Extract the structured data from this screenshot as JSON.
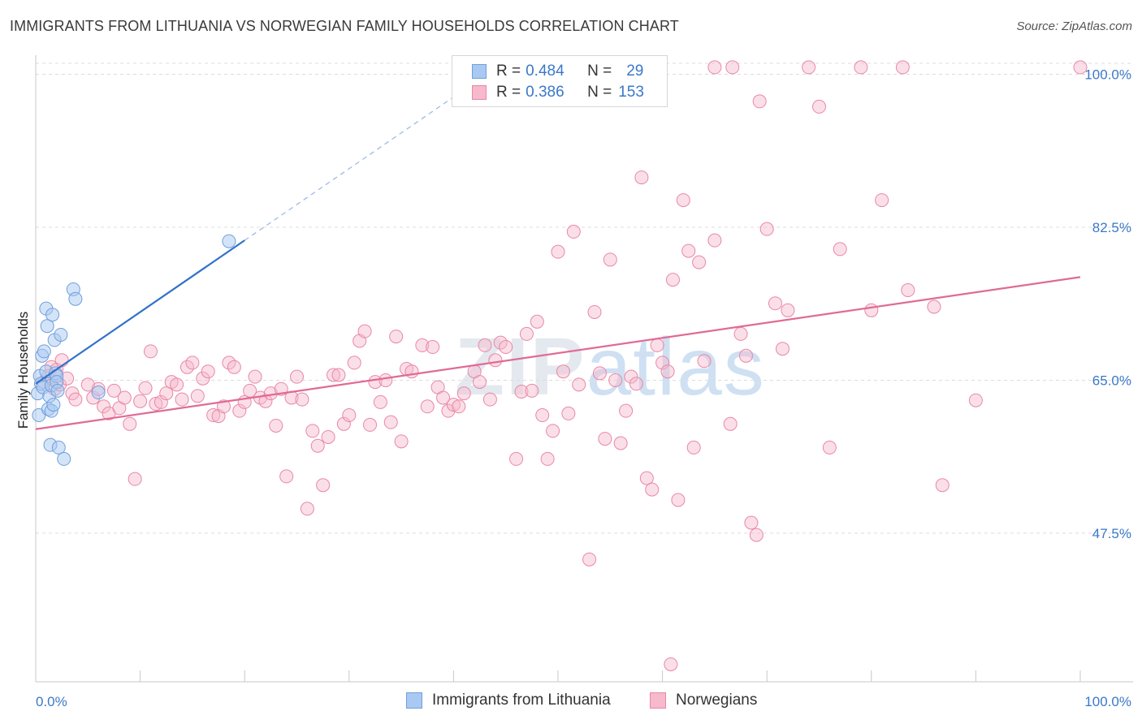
{
  "header": {
    "title": "IMMIGRANTS FROM LITHUANIA VS NORWEGIAN FAMILY HOUSEHOLDS CORRELATION CHART",
    "source": "Source: ZipAtlas.com"
  },
  "watermark": {
    "zip": "ZIP",
    "atlas": "atlas"
  },
  "legend": {
    "rows": [
      {
        "r_label": "R =",
        "r_value": "0.484",
        "n_label": "N =",
        "n_value": "29",
        "color": "#a9c9f2"
      },
      {
        "r_label": "R =",
        "r_value": "0.386",
        "n_label": "N =",
        "n_value": "153",
        "color": "#f7b9cc"
      }
    ]
  },
  "bottom_legend": {
    "items": [
      {
        "label": "Immigrants from Lithuania",
        "color": "#a9c9f2"
      },
      {
        "label": "Norwegians",
        "color": "#f7b9cc"
      }
    ]
  },
  "colors": {
    "blue_fill": "#a9c9f2",
    "blue_stroke": "#6f9fdc",
    "blue_line": "#2f72c8",
    "pink_fill": "#f7b9cc",
    "pink_stroke": "#e888a6",
    "pink_line": "#e06a95",
    "axis_text": "#3b78c8",
    "grid": "#dcdcdc"
  },
  "chart_data": {
    "type": "scatter",
    "title": "IMMIGRANTS FROM LITHUANIA VS NORWEGIAN FAMILY HOUSEHOLDS CORRELATION CHART",
    "xlabel": "",
    "ylabel": "Family Households",
    "xlim": [
      0,
      100
    ],
    "ylim": [
      30.5,
      102
    ],
    "x_tick_labels": [
      "0.0%",
      "100.0%"
    ],
    "y_ticks": [
      47.5,
      65.0,
      82.5,
      100.0
    ],
    "y_tick_labels": [
      "47.5%",
      "65.0%",
      "82.5%",
      "100.0%"
    ],
    "grid": true,
    "legend_position": "top-center",
    "series": [
      {
        "name": "Immigrants from Lithuania",
        "R": 0.484,
        "N": 29,
        "trend": {
          "x": [
            0,
            20
          ],
          "y": [
            64.6,
            81.0
          ]
        },
        "trend_dashed_extension": {
          "x": [
            20,
            45
          ],
          "y": [
            81.0,
            101.5
          ]
        },
        "points": [
          [
            0.2,
            63.5
          ],
          [
            0.3,
            61.0
          ],
          [
            0.4,
            65.5
          ],
          [
            0.5,
            64.6
          ],
          [
            0.6,
            67.8
          ],
          [
            0.7,
            64.2
          ],
          [
            0.8,
            68.3
          ],
          [
            1.0,
            66.0
          ],
          [
            1.0,
            73.2
          ],
          [
            1.1,
            71.2
          ],
          [
            1.2,
            61.7
          ],
          [
            1.3,
            63.2
          ],
          [
            1.4,
            57.6
          ],
          [
            1.5,
            64.4
          ],
          [
            1.5,
            61.5
          ],
          [
            1.6,
            72.5
          ],
          [
            1.7,
            62.2
          ],
          [
            1.8,
            69.6
          ],
          [
            1.9,
            65.8
          ],
          [
            2.0,
            65.5
          ],
          [
            2.0,
            64.8
          ],
          [
            2.1,
            63.8
          ],
          [
            2.2,
            57.3
          ],
          [
            2.4,
            70.2
          ],
          [
            2.7,
            56.0
          ],
          [
            3.6,
            75.4
          ],
          [
            3.8,
            74.3
          ],
          [
            6.0,
            63.6
          ],
          [
            18.5,
            80.9
          ]
        ]
      },
      {
        "name": "Norwegians",
        "R": 0.386,
        "N": 153,
        "trend": {
          "x": [
            0,
            100
          ],
          "y": [
            59.4,
            76.8
          ]
        },
        "points": [
          [
            0.8,
            64.8
          ],
          [
            1.2,
            65.5
          ],
          [
            1.5,
            66.5
          ],
          [
            1.8,
            64.0
          ],
          [
            2.0,
            66.2
          ],
          [
            2.3,
            64.5
          ],
          [
            2.5,
            67.3
          ],
          [
            3.0,
            65.2
          ],
          [
            3.5,
            63.5
          ],
          [
            3.8,
            62.8
          ],
          [
            5.0,
            64.5
          ],
          [
            5.5,
            63.0
          ],
          [
            6.0,
            64.0
          ],
          [
            6.5,
            62.0
          ],
          [
            7.0,
            61.2
          ],
          [
            7.5,
            63.8
          ],
          [
            8.0,
            61.8
          ],
          [
            8.5,
            63.0
          ],
          [
            9.0,
            60.0
          ],
          [
            9.5,
            53.7
          ],
          [
            10.0,
            62.6
          ],
          [
            10.5,
            64.1
          ],
          [
            11.0,
            68.3
          ],
          [
            11.5,
            62.3
          ],
          [
            12.0,
            62.5
          ],
          [
            12.5,
            63.5
          ],
          [
            13.0,
            64.8
          ],
          [
            13.5,
            64.5
          ],
          [
            14.0,
            62.8
          ],
          [
            14.5,
            66.5
          ],
          [
            15.0,
            67.0
          ],
          [
            15.5,
            63.2
          ],
          [
            16.0,
            65.2
          ],
          [
            16.5,
            66.0
          ],
          [
            17.0,
            61.0
          ],
          [
            17.5,
            60.9
          ],
          [
            18.0,
            62.0
          ],
          [
            18.5,
            67.0
          ],
          [
            19.0,
            66.5
          ],
          [
            19.5,
            61.5
          ],
          [
            20.0,
            62.5
          ],
          [
            20.5,
            63.8
          ],
          [
            21.0,
            65.4
          ],
          [
            21.5,
            63.0
          ],
          [
            22.0,
            62.6
          ],
          [
            22.5,
            63.5
          ],
          [
            23.0,
            59.8
          ],
          [
            23.5,
            64.0
          ],
          [
            24.0,
            54.0
          ],
          [
            24.5,
            63.0
          ],
          [
            25.0,
            65.4
          ],
          [
            25.5,
            62.8
          ],
          [
            26.0,
            50.3
          ],
          [
            26.5,
            59.2
          ],
          [
            27.0,
            57.5
          ],
          [
            27.5,
            53.0
          ],
          [
            28.0,
            58.5
          ],
          [
            28.5,
            65.6
          ],
          [
            29.0,
            65.6
          ],
          [
            29.5,
            60.0
          ],
          [
            30.0,
            61.0
          ],
          [
            30.5,
            67.0
          ],
          [
            31.0,
            69.5
          ],
          [
            31.5,
            70.6
          ],
          [
            32.0,
            59.9
          ],
          [
            32.5,
            64.8
          ],
          [
            33.0,
            62.5
          ],
          [
            33.5,
            65.0
          ],
          [
            34.0,
            60.2
          ],
          [
            34.5,
            70.0
          ],
          [
            35.0,
            58.0
          ],
          [
            35.5,
            66.3
          ],
          [
            36.0,
            66.0
          ],
          [
            37.0,
            69.0
          ],
          [
            37.5,
            62.0
          ],
          [
            38.0,
            68.8
          ],
          [
            38.5,
            64.2
          ],
          [
            39.0,
            63.0
          ],
          [
            39.5,
            61.5
          ],
          [
            40.0,
            62.2
          ],
          [
            40.5,
            62.0
          ],
          [
            41.0,
            63.5
          ],
          [
            42.0,
            66.0
          ],
          [
            42.5,
            64.8
          ],
          [
            43.0,
            69.0
          ],
          [
            43.5,
            62.8
          ],
          [
            44.0,
            67.3
          ],
          [
            44.5,
            69.3
          ],
          [
            45.0,
            68.8
          ],
          [
            46.0,
            56.0
          ],
          [
            46.5,
            63.7
          ],
          [
            47.0,
            70.3
          ],
          [
            47.5,
            63.8
          ],
          [
            48.0,
            71.7
          ],
          [
            48.5,
            61.0
          ],
          [
            49.0,
            56.0
          ],
          [
            49.5,
            59.2
          ],
          [
            50.0,
            79.7
          ],
          [
            50.5,
            66.0
          ],
          [
            51.0,
            61.2
          ],
          [
            51.5,
            82.0
          ],
          [
            52.0,
            64.5
          ],
          [
            53.0,
            44.5
          ],
          [
            53.5,
            72.8
          ],
          [
            54.0,
            65.8
          ],
          [
            54.5,
            58.3
          ],
          [
            55.0,
            78.8
          ],
          [
            55.5,
            65.0
          ],
          [
            56.0,
            57.8
          ],
          [
            56.5,
            61.5
          ],
          [
            57.0,
            65.4
          ],
          [
            57.5,
            64.6
          ],
          [
            58.0,
            88.2
          ],
          [
            58.5,
            53.8
          ],
          [
            59.0,
            52.5
          ],
          [
            59.5,
            69.0
          ],
          [
            60.0,
            67.0
          ],
          [
            60.5,
            66.0
          ],
          [
            61.0,
            76.5
          ],
          [
            61.5,
            51.3
          ],
          [
            62.0,
            85.6
          ],
          [
            62.5,
            79.8
          ],
          [
            63.0,
            57.3
          ],
          [
            63.5,
            78.5
          ],
          [
            64.0,
            67.2
          ],
          [
            65.0,
            100.8
          ],
          [
            65.0,
            81.0
          ],
          [
            66.5,
            60.0
          ],
          [
            66.7,
            100.8
          ],
          [
            67.5,
            70.3
          ],
          [
            68.0,
            67.8
          ],
          [
            68.5,
            48.7
          ],
          [
            69.0,
            47.3
          ],
          [
            69.3,
            96.9
          ],
          [
            70.0,
            82.3
          ],
          [
            70.8,
            73.8
          ],
          [
            71.5,
            68.6
          ],
          [
            72.0,
            73.0
          ],
          [
            74.0,
            100.8
          ],
          [
            75.0,
            96.3
          ],
          [
            76.0,
            57.3
          ],
          [
            77.0,
            80.0
          ],
          [
            79.0,
            100.8
          ],
          [
            80.0,
            73.0
          ],
          [
            81.0,
            85.6
          ],
          [
            83.0,
            100.8
          ],
          [
            83.5,
            75.3
          ],
          [
            86.0,
            73.4
          ],
          [
            86.8,
            53.0
          ],
          [
            90.0,
            62.7
          ],
          [
            100.0,
            100.8
          ],
          [
            60.8,
            32.5
          ]
        ]
      }
    ]
  }
}
